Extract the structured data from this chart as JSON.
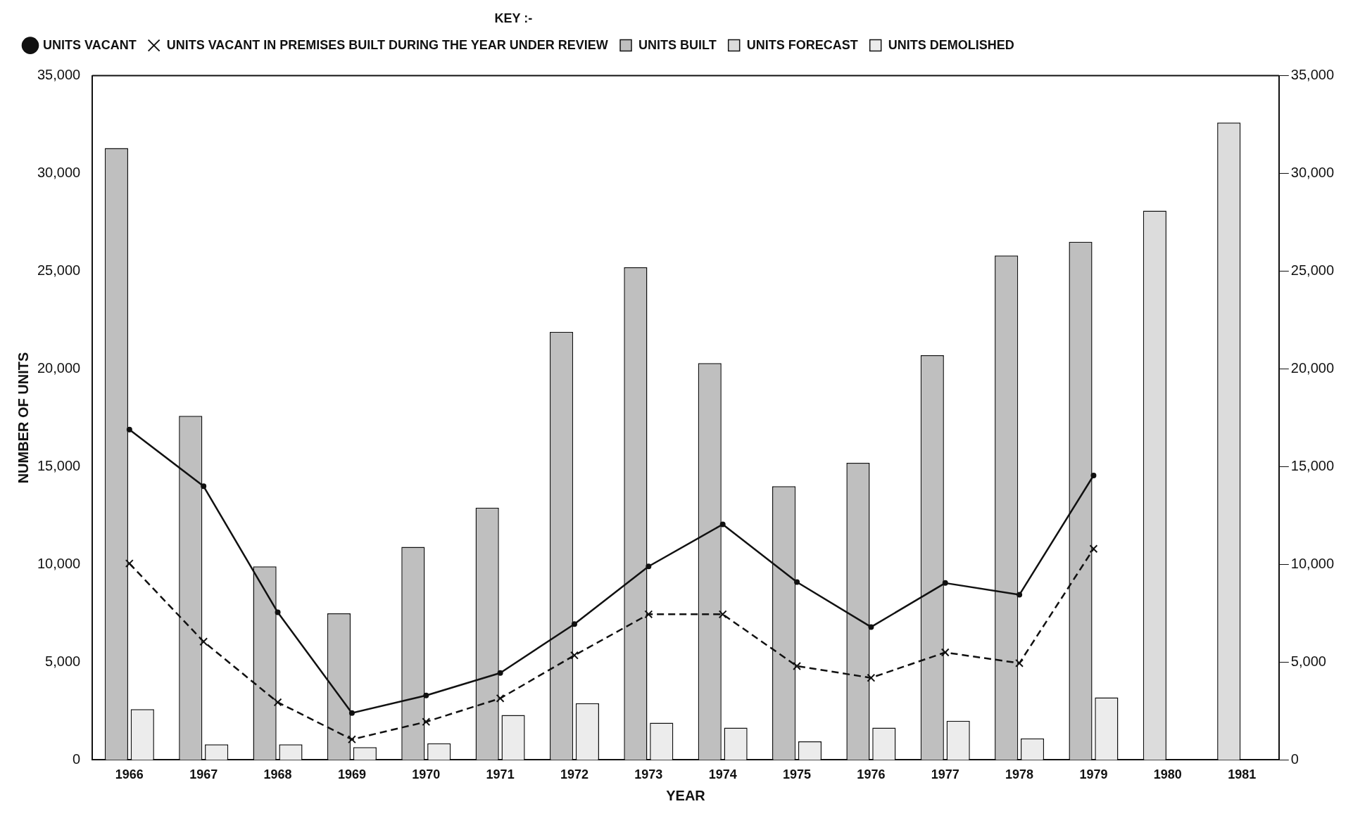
{
  "chart_data": {
    "type": "bar",
    "xlabel": "YEAR",
    "ylabel": "NUMBER OF UNITS",
    "legend_title": "KEY :-",
    "legend": "top left",
    "grid": false,
    "categories": [
      "1966",
      "1967",
      "1968",
      "1969",
      "1970",
      "1971",
      "1972",
      "1973",
      "1974",
      "1975",
      "1976",
      "1977",
      "1978",
      "1979",
      "1980",
      "1981"
    ],
    "ylim": [
      0,
      35000
    ],
    "yticks": [
      {
        "value": 0,
        "label": "0"
      },
      {
        "value": 5000,
        "label": "5,000"
      },
      {
        "value": 10000,
        "label": "10,000"
      },
      {
        "value": 15000,
        "label": "15,000"
      },
      {
        "value": 20000,
        "label": "20,000"
      },
      {
        "value": 25000,
        "label": "25,000"
      },
      {
        "value": 30000,
        "label": "30,000"
      },
      {
        "value": 35000,
        "label": "35,000"
      }
    ],
    "y2lim": [
      0,
      35000
    ],
    "y2ticks": [
      {
        "value": 0,
        "label": "0"
      },
      {
        "value": 5000,
        "label": "5,000"
      },
      {
        "value": 10000,
        "label": "10,000"
      },
      {
        "value": 15000,
        "label": "15,000"
      },
      {
        "value": 20000,
        "label": "20,000"
      },
      {
        "value": 25000,
        "label": "25,000"
      },
      {
        "value": 30000,
        "label": "30,000"
      },
      {
        "value": 35000,
        "label": "35,000"
      }
    ],
    "series": [
      {
        "name": "UNITS BUILT",
        "color": "#bfbfbf",
        "values": [
          31300,
          17600,
          9900,
          7500,
          10900,
          12900,
          21900,
          25200,
          20300,
          14000,
          15200,
          20700,
          25800,
          26500,
          null,
          null
        ]
      },
      {
        "name": "UNITS FORECAST",
        "color": "#dcdcdc",
        "values": [
          null,
          null,
          null,
          null,
          null,
          null,
          null,
          null,
          null,
          null,
          null,
          null,
          null,
          null,
          28100,
          32600
        ]
      },
      {
        "name": "UNITS DEMOLISHED",
        "color": "#ececec",
        "values": [
          2600,
          800,
          800,
          650,
          850,
          2300,
          2900,
          1900,
          1650,
          950,
          1650,
          2000,
          1100,
          3200,
          null,
          null
        ]
      },
      {
        "name": "UNITS VACANT",
        "type": "line",
        "color": "#111111",
        "marker": "circle",
        "line_style": "solid",
        "values": [
          16900,
          14000,
          7550,
          2400,
          3300,
          4450,
          6950,
          9900,
          12050,
          9100,
          6800,
          9050,
          8450,
          14550,
          null,
          null
        ]
      },
      {
        "name": "UNITS VACANT IN PREMISES BUILT DURING THE YEAR UNDER REVIEW",
        "type": "line",
        "color": "#111111",
        "marker": "cross",
        "line_style": "dashed",
        "values": [
          10050,
          6050,
          2950,
          1050,
          1950,
          3150,
          5350,
          7450,
          7450,
          4800,
          4200,
          5500,
          4950,
          10800,
          null,
          null
        ]
      }
    ]
  }
}
